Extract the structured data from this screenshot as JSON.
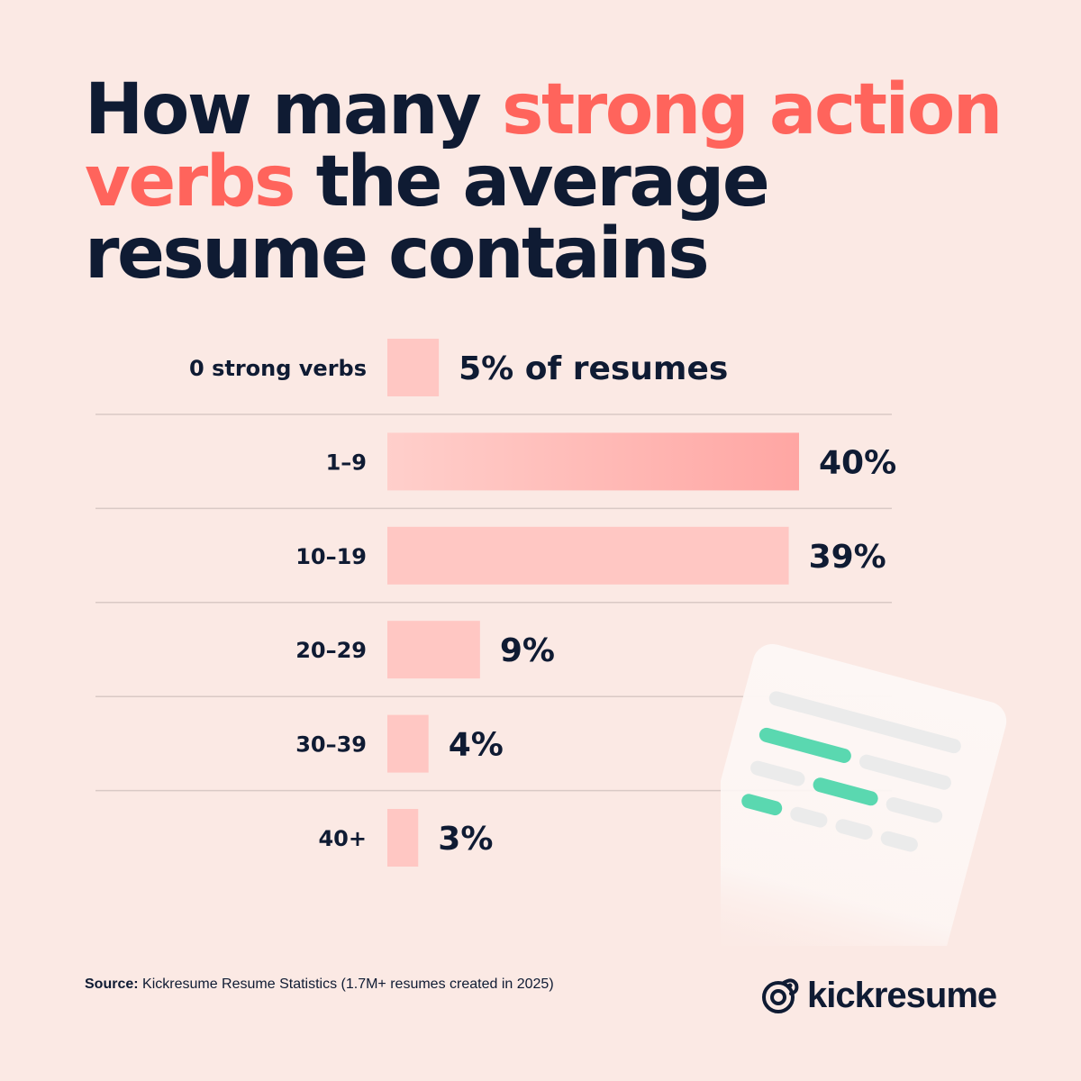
{
  "title": {
    "part1": "How many ",
    "highlight": "strong action verbs",
    "part2": " the average resume contains"
  },
  "chart_data": {
    "type": "bar",
    "orientation": "horizontal",
    "categories": [
      "0 strong verbs",
      "1–9",
      "10–19",
      "20–29",
      "30–39",
      "40+"
    ],
    "values": [
      5,
      40,
      39,
      9,
      4,
      3
    ],
    "value_labels": [
      "5% of resumes",
      "40%",
      "39%",
      "9%",
      "4%",
      "3%"
    ],
    "xlim": [
      0,
      40
    ],
    "grid": false,
    "bar_color": "#ffc7c3",
    "highlight_bar_color": "#ffa6a3"
  },
  "source": {
    "label": "Source:",
    "text": " Kickresume Resume Statistics (1.7M+ resumes created in 2025)"
  },
  "brand": {
    "name": "kickresume",
    "icon": "chameleon-logo-icon"
  },
  "colors": {
    "background": "#fbe9e4",
    "text": "#0f1b33",
    "accent": "#ff645c",
    "green": "#5ad8b0"
  }
}
